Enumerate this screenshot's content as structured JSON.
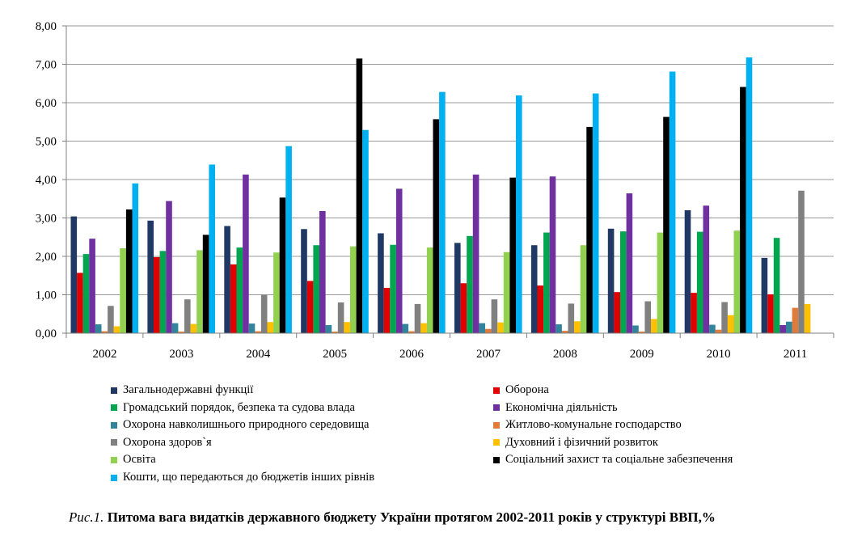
{
  "caption": {
    "label": "Рис.1.",
    "text": "Питома вага видатків державного бюджету України протягом 2002-2011 років у структурі ВВП,%"
  },
  "chart_data": {
    "type": "bar",
    "categories": [
      "2002",
      "2003",
      "2004",
      "2005",
      "2006",
      "2007",
      "2008",
      "2009",
      "2010",
      "2011"
    ],
    "ylim": [
      0,
      8
    ],
    "yticks": [
      "0,00",
      "1,00",
      "2,00",
      "3,00",
      "4,00",
      "5,00",
      "6,00",
      "7,00",
      "8,00"
    ],
    "grid": true,
    "legend_position": "bottom",
    "series": [
      {
        "name": "Загальнодержавні функції",
        "color": "#1F3864",
        "values": [
          3.04,
          2.93,
          2.79,
          2.71,
          2.6,
          2.35,
          2.29,
          2.72,
          3.2,
          1.96
        ]
      },
      {
        "name": "Оборона",
        "color": "#E00000",
        "values": [
          1.57,
          1.98,
          1.79,
          1.36,
          1.18,
          1.3,
          1.24,
          1.07,
          1.05,
          1.01
        ]
      },
      {
        "name": "Громадський порядок, безпека та судова влада",
        "color": "#00A550",
        "values": [
          2.06,
          2.14,
          2.23,
          2.29,
          2.3,
          2.53,
          2.62,
          2.65,
          2.64,
          2.48
        ]
      },
      {
        "name": "Економічна діяльність",
        "color": "#7030A0",
        "values": [
          2.46,
          3.44,
          4.13,
          3.18,
          3.76,
          4.13,
          4.08,
          3.64,
          3.32,
          0.21
        ]
      },
      {
        "name": "Охорона навколишнього природного середовища",
        "color": "#31849B",
        "values": [
          0.23,
          0.26,
          0.25,
          0.21,
          0.24,
          0.26,
          0.23,
          0.2,
          0.22,
          0.3
        ]
      },
      {
        "name": "Житлово-комунальне господарство",
        "color": "#E07B39",
        "values": [
          0.05,
          0.04,
          0.05,
          0.04,
          0.05,
          0.11,
          0.06,
          0.04,
          0.09,
          0.66
        ]
      },
      {
        "name": "Охорона здоров`я",
        "color": "#808080",
        "values": [
          0.71,
          0.88,
          1.0,
          0.8,
          0.76,
          0.88,
          0.77,
          0.83,
          0.81,
          3.71
        ]
      },
      {
        "name": "Духовний і фізичний розвиток",
        "color": "#FFC000",
        "values": [
          0.18,
          0.24,
          0.29,
          0.29,
          0.26,
          0.28,
          0.31,
          0.37,
          0.47,
          0.76
        ]
      },
      {
        "name": "Освіта",
        "color": "#92D050",
        "values": [
          2.21,
          2.16,
          2.1,
          2.26,
          2.23,
          2.11,
          2.29,
          2.62,
          2.67,
          null
        ]
      },
      {
        "name": "Соціальний захист та соціальне забезпечення",
        "color": "#000000",
        "values": [
          3.22,
          2.56,
          3.53,
          7.15,
          5.57,
          4.05,
          5.37,
          5.63,
          6.41,
          null
        ]
      },
      {
        "name": "Кошти, що передаються до бюджетів інших рівнів",
        "color": "#00B0F0",
        "values": [
          3.9,
          4.39,
          4.87,
          5.29,
          6.28,
          6.19,
          6.24,
          6.81,
          7.18,
          null
        ]
      }
    ]
  }
}
